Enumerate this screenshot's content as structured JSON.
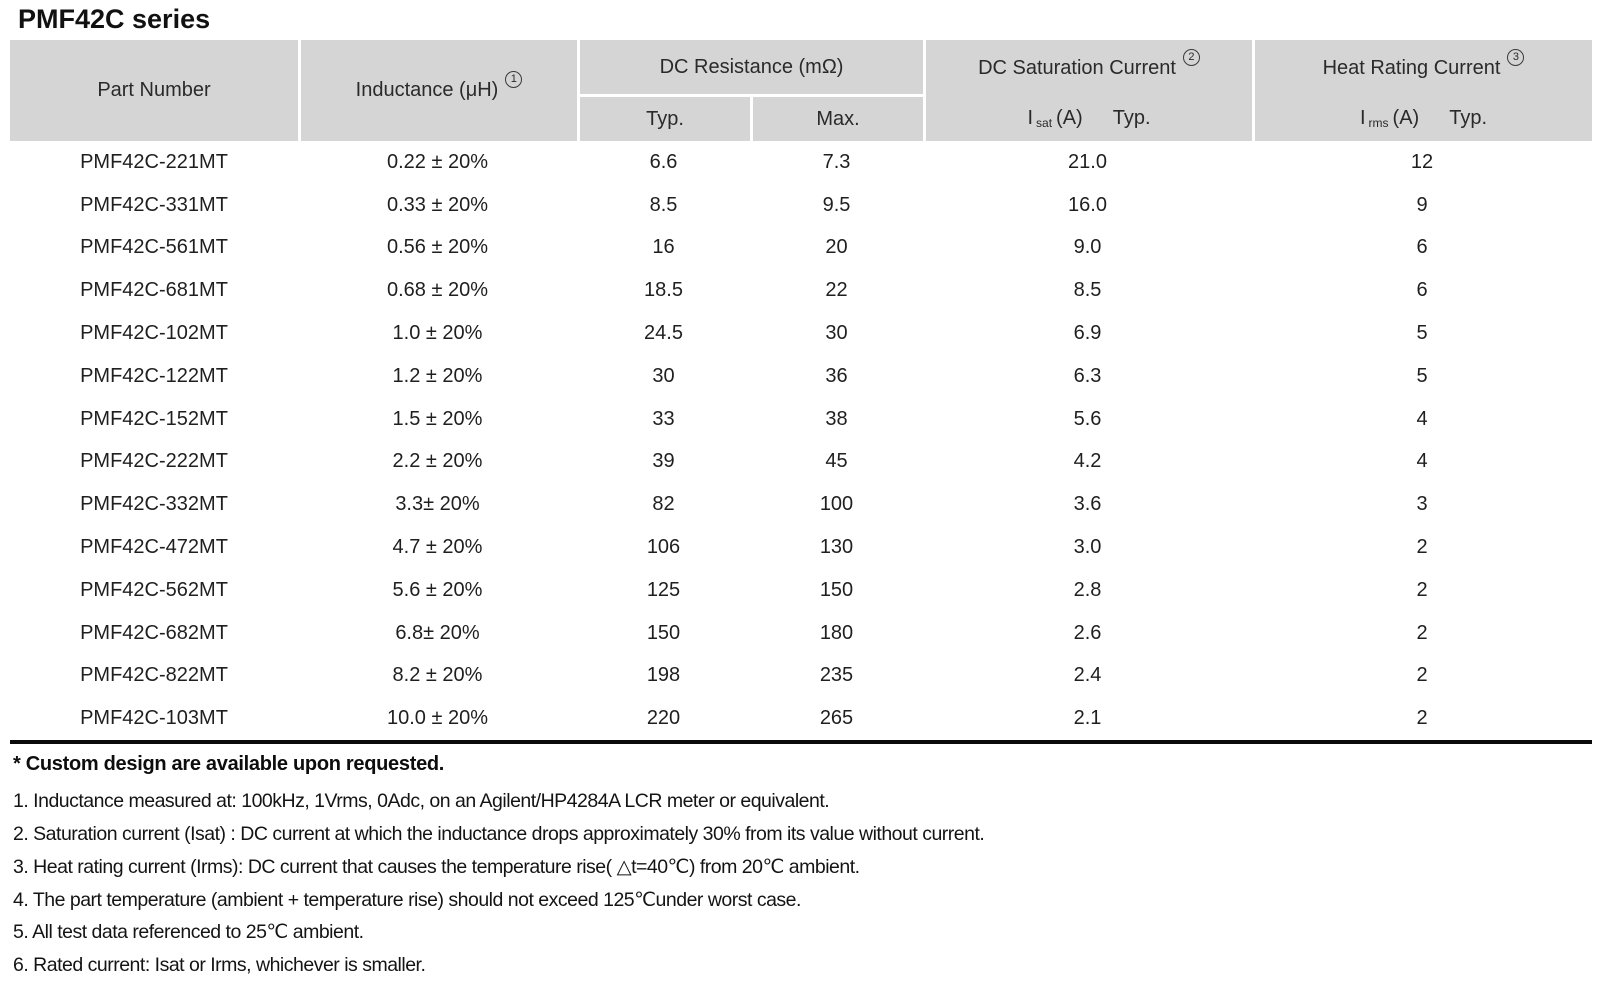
{
  "page": {
    "title": "PMF42C series"
  },
  "colors": {
    "header_bg": "#d5d5d5",
    "text": "#1c1c1c",
    "bottom_rule": "#0a0a0a",
    "background": "#ffffff"
  },
  "table": {
    "header": {
      "part_number": "Part Number",
      "inductance": "Inductance (μH)",
      "inductance_note_ref": "1",
      "dc_resistance": "DC Resistance (mΩ)",
      "dc_resistance_typ": "Typ.",
      "dc_resistance_max": "Max.",
      "dc_saturation": "DC Saturation Current",
      "dc_saturation_note_ref": "2",
      "sat_symbol": "I",
      "sat_sub": "sat",
      "sat_unit": "(A)",
      "sat_qualifier": "Typ.",
      "heat_rating": "Heat Rating Current",
      "heat_rating_note_ref": "3",
      "rms_symbol": "I",
      "rms_sub": "rms",
      "rms_unit": "(A)",
      "rms_qualifier": "Typ."
    },
    "rows": [
      {
        "part": "PMF42C-221MT",
        "inductance": "0.22 ± 20%",
        "dcr_typ": "6.6",
        "dcr_max": "7.3",
        "isat": "21.0",
        "irms": "12"
      },
      {
        "part": "PMF42C-331MT",
        "inductance": "0.33 ± 20%",
        "dcr_typ": "8.5",
        "dcr_max": "9.5",
        "isat": "16.0",
        "irms": "9"
      },
      {
        "part": "PMF42C-561MT",
        "inductance": "0.56 ± 20%",
        "dcr_typ": "16",
        "dcr_max": "20",
        "isat": "9.0",
        "irms": "6"
      },
      {
        "part": "PMF42C-681MT",
        "inductance": "0.68 ± 20%",
        "dcr_typ": "18.5",
        "dcr_max": "22",
        "isat": "8.5",
        "irms": "6"
      },
      {
        "part": "PMF42C-102MT",
        "inductance": "1.0 ± 20%",
        "dcr_typ": "24.5",
        "dcr_max": "30",
        "isat": "6.9",
        "irms": "5"
      },
      {
        "part": "PMF42C-122MT",
        "inductance": "1.2 ± 20%",
        "dcr_typ": "30",
        "dcr_max": "36",
        "isat": "6.3",
        "irms": "5"
      },
      {
        "part": "PMF42C-152MT",
        "inductance": "1.5 ± 20%",
        "dcr_typ": "33",
        "dcr_max": "38",
        "isat": "5.6",
        "irms": "4"
      },
      {
        "part": "PMF42C-222MT",
        "inductance": "2.2 ± 20%",
        "dcr_typ": "39",
        "dcr_max": "45",
        "isat": "4.2",
        "irms": "4"
      },
      {
        "part": "PMF42C-332MT",
        "inductance": "3.3± 20%",
        "dcr_typ": "82",
        "dcr_max": "100",
        "isat": "3.6",
        "irms": "3"
      },
      {
        "part": "PMF42C-472MT",
        "inductance": "4.7 ± 20%",
        "dcr_typ": "106",
        "dcr_max": "130",
        "isat": "3.0",
        "irms": "2"
      },
      {
        "part": "PMF42C-562MT",
        "inductance": "5.6 ± 20%",
        "dcr_typ": "125",
        "dcr_max": "150",
        "isat": "2.8",
        "irms": "2"
      },
      {
        "part": "PMF42C-682MT",
        "inductance": "6.8± 20%",
        "dcr_typ": "150",
        "dcr_max": "180",
        "isat": "2.6",
        "irms": "2"
      },
      {
        "part": "PMF42C-822MT",
        "inductance": "8.2 ± 20%",
        "dcr_typ": "198",
        "dcr_max": "235",
        "isat": "2.4",
        "irms": "2"
      },
      {
        "part": "PMF42C-103MT",
        "inductance": "10.0 ± 20%",
        "dcr_typ": "220",
        "dcr_max": "265",
        "isat": "2.1",
        "irms": "2"
      }
    ]
  },
  "footnotes": {
    "star_note": "* Custom design are available upon requested.",
    "notes": [
      "1. Inductance measured at: 100kHz, 1Vrms, 0Adc, on an Agilent/HP4284A LCR meter or equivalent.",
      "2. Saturation current (Isat) : DC current at which the inductance drops approximately 30% from its value without current.",
      "3. Heat rating current (Irms): DC current that causes the temperature rise( △t=40℃) from 20℃ ambient.",
      "4. The part temperature (ambient + temperature rise) should not exceed 125℃under worst case.",
      "5. All test data referenced to 25℃ ambient.",
      "6. Rated current: Isat or Irms, whichever is smaller."
    ]
  }
}
